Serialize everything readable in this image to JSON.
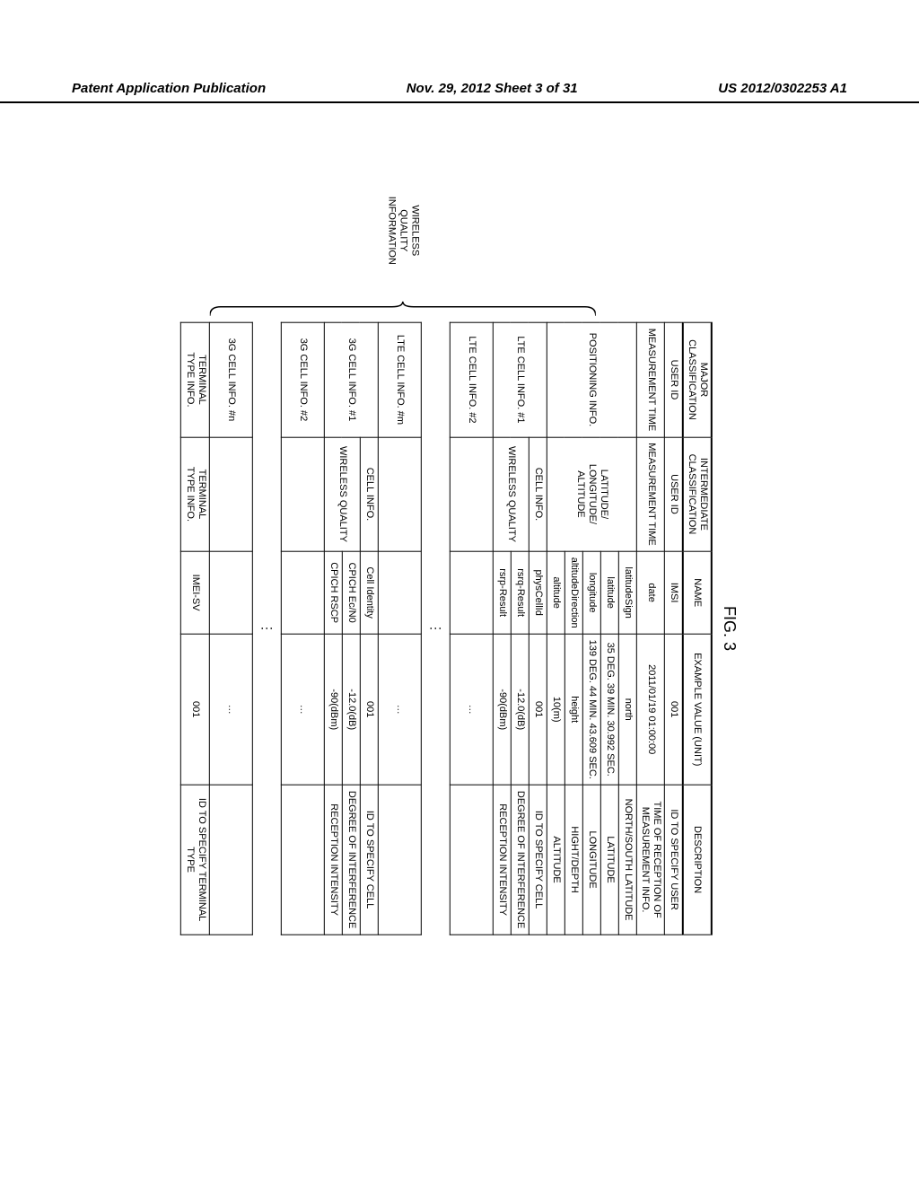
{
  "header": {
    "left": "Patent Application Publication",
    "center": "Nov. 29, 2012  Sheet 3 of 31",
    "right": "US 2012/0302253 A1"
  },
  "figure_label": "FIG. 3",
  "brace_label": "WIRELESS\nQUALITY\nINFORMATION",
  "columns": {
    "c1": "MAJOR\nCLASSIFICATION",
    "c2": "INTERMEDIATE\nCLASSIFICATION",
    "c3": "NAME",
    "c4": "EXAMPLE VALUE (UNIT)",
    "c5": "DESCRIPTION"
  },
  "rows": [
    {
      "c1": "USER ID",
      "c2": "USER ID",
      "c3": "IMSI",
      "c4": "001",
      "c5": "ID TO SPECIFY USER"
    },
    {
      "c1": "MEASUREMENT TIME",
      "c2": "MEASUREMENT TIME",
      "c3": "date",
      "c4": "2011/01/19 01:00:00",
      "c5": "TIME OF RECEPTION OF\nMEASUREMENT INFO."
    },
    {
      "c1": "POSITIONING INFO.",
      "rowspan1": 5,
      "c2": "LATITUDE/\nLONGITUDE/\nALTITUDE",
      "rowspan2": 5,
      "c3": "latitudeSign",
      "c4": "north",
      "c5": "NORTH/SOUTH LATITUDE"
    },
    {
      "c3": "latitude",
      "c4": "35 DEG. 39 MIN. 30.992 SEC.",
      "c5": "LATITUDE"
    },
    {
      "c3": "longitude",
      "c4": "139 DEG. 44 MIN. 43.609 SEC.",
      "c5": "LONGITUDE"
    },
    {
      "c3": "altitudeDirection",
      "c4": "height",
      "c5": "HIGHT/DEPTH"
    },
    {
      "c3": "altitude",
      "c4": "10(m)",
      "c5": "ALTITUDE"
    },
    {
      "c1": "LTE CELL INFO. #1",
      "rowspan1": 3,
      "c2": "CELL INFO.",
      "c3": "physCellId",
      "c4": "001",
      "c5": "ID TO SPECIFY CELL"
    },
    {
      "c2": "WIRELESS QUALITY",
      "rowspan2": 2,
      "c3": "rsrq-Result",
      "c4": "-12.0(dB)",
      "c5": "DEGREE OF INTERFERENCE"
    },
    {
      "c3": "rsrp-Result",
      "c4": "-90(dBm)",
      "c5": "RECEPTION INTENSITY"
    },
    {
      "c1": "LTE CELL INFO. #2",
      "c2": "",
      "c3": "",
      "c4": "…",
      "c5": "",
      "tall": true
    },
    {
      "vdots": true
    },
    {
      "c1": "LTE CELL INFO. #m",
      "c2": "",
      "c3": "",
      "c4": "…",
      "c5": "",
      "tall": true
    },
    {
      "c1": "3G CELL INFO. #1",
      "rowspan1": 3,
      "c2": "CELL INFO.",
      "c3": "Cell Identity",
      "c4": "001",
      "c5": "ID TO SPECIFY CELL"
    },
    {
      "c2": "WIRELESS QUALITY",
      "rowspan2": 2,
      "c3": "CPICH Ec/N0",
      "c4": "-12.0(dB)",
      "c5": "DEGREE OF INTERFERENCE"
    },
    {
      "c3": "CPICH RSCP",
      "c4": "-90(dBm)",
      "c5": "RECEPTION INTENSITY"
    },
    {
      "c1": "3G CELL INFO. #2",
      "c2": "",
      "c3": "",
      "c4": "…",
      "c5": "",
      "tall": true
    },
    {
      "vdots": true
    },
    {
      "c1": "3G CELL INFO. #n",
      "c2": "",
      "c3": "",
      "c4": "…",
      "c5": "",
      "tall": true
    },
    {
      "c1": "TERMINAL\nTYPE INFO.",
      "c2": "TERMINAL\nTYPE INFO.",
      "c3": "IMEI-SV",
      "c4": "001",
      "c5": "ID TO SPECIFY TERMINAL\nTYPE"
    }
  ]
}
